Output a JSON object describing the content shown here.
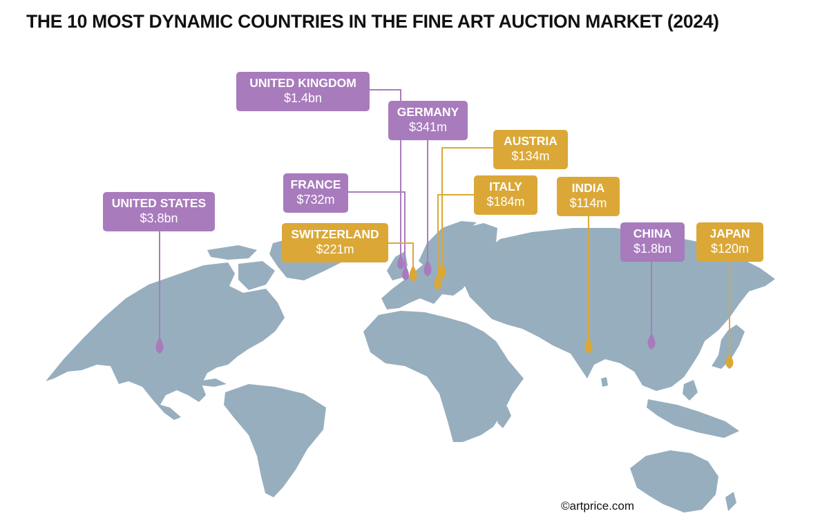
{
  "title": "THE 10 MOST DYNAMIC COUNTRIES IN THE FINE ART AUCTION MARKET (2024)",
  "credit": "©artprice.com",
  "colors": {
    "land": "#97aebe",
    "group_a": "#a87bbd",
    "group_b": "#dba837"
  },
  "countries": [
    {
      "name": "UNITED KINGDOM",
      "value": "$1.4bn",
      "color": "group_a"
    },
    {
      "name": "GERMANY",
      "value": "$341m",
      "color": "group_a"
    },
    {
      "name": "AUSTRIA",
      "value": "$134m",
      "color": "group_b"
    },
    {
      "name": "FRANCE",
      "value": "$732m",
      "color": "group_a"
    },
    {
      "name": "ITALY",
      "value": "$184m",
      "color": "group_b"
    },
    {
      "name": "INDIA",
      "value": "$114m",
      "color": "group_b"
    },
    {
      "name": "UNITED STATES",
      "value": "$3.8bn",
      "color": "group_a"
    },
    {
      "name": "SWITZERLAND",
      "value": "$221m",
      "color": "group_b"
    },
    {
      "name": "CHINA",
      "value": "$1.8bn",
      "color": "group_a"
    },
    {
      "name": "JAPAN",
      "value": "$120m",
      "color": "group_b"
    }
  ]
}
